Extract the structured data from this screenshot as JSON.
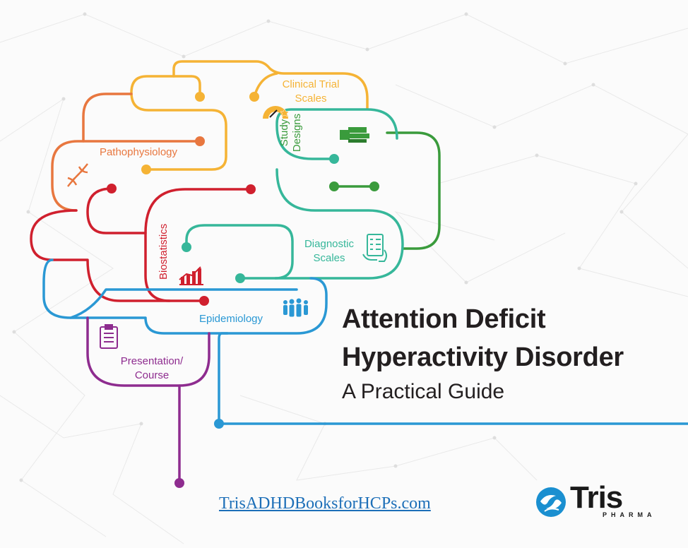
{
  "labels": {
    "clinical_trial": [
      "Clinical Trial",
      "Scales"
    ],
    "pathophysiology": "Pathophysiology",
    "study_designs": [
      "Study",
      "Designs"
    ],
    "biostatistics": "Biostatistics",
    "diagnostic": [
      "Diagnostic",
      "Scales"
    ],
    "epidemiology": "Epidemiology",
    "presentation": [
      "Presentation/",
      "Course"
    ]
  },
  "title": {
    "line1": "Attention Deficit",
    "line2": "Hyperactivity Disorder",
    "subtitle": "A Practical Guide"
  },
  "url": "TrisADHDBooksforHCPs.com",
  "logo": {
    "word": "Tris",
    "sub": "PHARMA"
  },
  "colors": {
    "yellow": "#f5b335",
    "orange": "#e8773f",
    "red": "#d0202e",
    "green": "#3a9b3c",
    "teal": "#36b79a",
    "blue": "#2a98d4",
    "purple": "#8e2c8f",
    "logo_blue": "#1a8fd0",
    "text_dark": "#231f20"
  },
  "icons": {
    "clinical_trial": "gauge-icon",
    "pathophysiology": "dna-icon",
    "study_designs": "books-icon",
    "biostatistics": "bar-chart-icon",
    "diagnostic": "checklist-icon",
    "epidemiology": "people-icon",
    "presentation": "clipboard-icon",
    "logo": "tris-logo-icon"
  }
}
